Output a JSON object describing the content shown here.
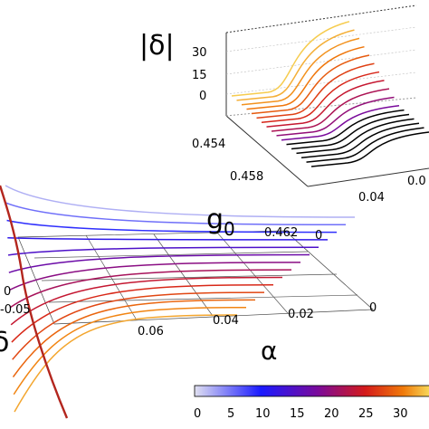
{
  "chart_data": [
    {
      "panel": "main",
      "type": "surface-line",
      "xlabel": "α",
      "x_ticks": [
        "0.06",
        "0.04",
        "0.02",
        "0"
      ],
      "z_ticks": [
        "0",
        "-0.05"
      ],
      "z_axis_label": "δ",
      "xlim": [
        0,
        0.07
      ],
      "alpha_values": [
        0.0,
        0.005,
        0.01,
        0.015,
        0.02,
        0.025,
        0.03,
        0.035,
        0.04,
        0.045,
        0.05,
        0.055,
        0.06,
        0.065
      ],
      "grid": true
    },
    {
      "panel": "inset",
      "type": "surface-line",
      "zlabel": "|δ|",
      "ylabel": "g0",
      "y_base": "g",
      "y_sub": "0",
      "z_ticks": [
        "30",
        "15",
        "0"
      ],
      "y_ticks": [
        "0.454",
        "0.458",
        "0.462"
      ],
      "x_ticks": [
        "0",
        "0.04",
        "0.0"
      ],
      "zlim": [
        0,
        35
      ],
      "ylim": [
        0.454,
        0.462
      ],
      "g0_values": [
        0.454,
        0.4545,
        0.455,
        0.4555,
        0.456,
        0.4565,
        0.457,
        0.4575,
        0.458,
        0.4585,
        0.459,
        0.4595,
        0.46,
        0.4605,
        0.461,
        0.4615,
        0.462
      ],
      "grid": true
    }
  ],
  "colorbar": {
    "ticks": [
      "0",
      "5",
      "10",
      "15",
      "20",
      "25",
      "30"
    ],
    "range": [
      0,
      35
    ],
    "colors": [
      "#e0e0f0",
      "#1a1aff",
      "#7a0a9a",
      "#d41a1a",
      "#f07a0a",
      "#f8e060"
    ]
  }
}
